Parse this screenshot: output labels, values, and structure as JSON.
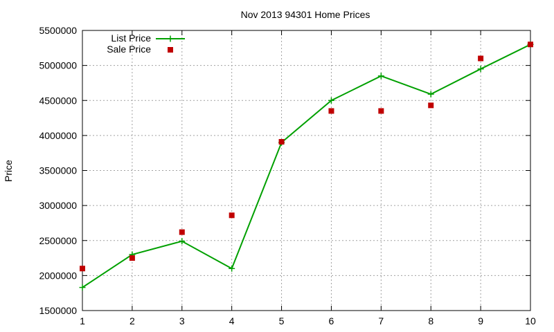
{
  "chart_data": {
    "type": "line",
    "title": "Nov 2013 94301 Home Prices",
    "xlabel": "",
    "ylabel": "Price",
    "x": [
      1,
      2,
      3,
      4,
      5,
      6,
      7,
      8,
      9,
      10
    ],
    "xlim": [
      1,
      10
    ],
    "ylim": [
      1500000,
      5500000
    ],
    "xticks": [
      1,
      2,
      3,
      4,
      5,
      6,
      7,
      8,
      9,
      10
    ],
    "yticks": [
      1500000,
      2000000,
      2500000,
      3000000,
      3500000,
      4000000,
      4500000,
      5000000,
      5500000
    ],
    "grid": true,
    "legend_position": "top-left",
    "series": [
      {
        "name": "List Price",
        "kind": "line",
        "marker": "plus",
        "color": "#00a000",
        "values": [
          1830000,
          2300000,
          2490000,
          2100000,
          3900000,
          4500000,
          4850000,
          4590000,
          4950000,
          5300000
        ]
      },
      {
        "name": "Sale Price",
        "kind": "scatter",
        "marker": "square",
        "color": "#c00000",
        "values": [
          2100000,
          2250000,
          2620000,
          2860000,
          3910000,
          4350000,
          4350000,
          4430000,
          5100000,
          5300000
        ]
      }
    ]
  }
}
